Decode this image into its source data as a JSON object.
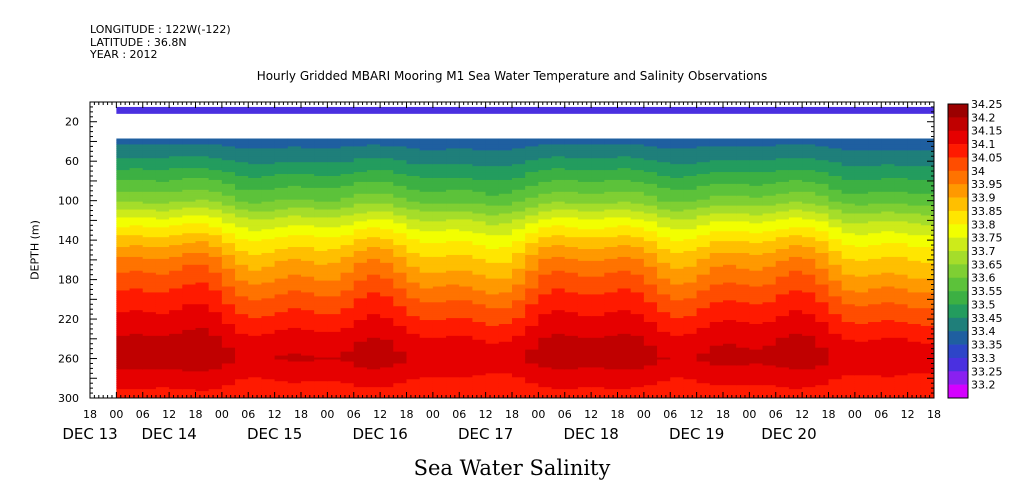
{
  "meta": {
    "longitude": "LONGITUDE : 122W(-122)",
    "latitude": "LATITUDE : 36.8N",
    "year": "YEAR : 2012"
  },
  "chart_data": {
    "type": "heatmap",
    "title": "Hourly Gridded MBARI Mooring M1 Sea Water Temperature and Salinity Observations",
    "subtitle": "Sea Water Salinity",
    "ylabel": "DEPTH (m)",
    "y_reversed": true,
    "ylim": [
      0,
      300
    ],
    "y_ticks": [
      20,
      60,
      100,
      140,
      180,
      220,
      260,
      300
    ],
    "x_range_hours": [
      -6,
      186
    ],
    "x_hour_ticks": [
      "18",
      "00",
      "06",
      "12",
      "18",
      "00",
      "06",
      "12",
      "18",
      "00",
      "06",
      "12",
      "18",
      "00",
      "06",
      "12",
      "18",
      "00",
      "06",
      "12",
      "18",
      "00",
      "06",
      "12",
      "18",
      "00",
      "06",
      "12",
      "18",
      "00",
      "06",
      "12",
      "18"
    ],
    "x_date_labels": [
      {
        "label": "DEC 13",
        "hour": -6
      },
      {
        "label": "DEC 14",
        "hour": 12
      },
      {
        "label": "DEC 15",
        "hour": 36
      },
      {
        "label": "DEC 16",
        "hour": 60
      },
      {
        "label": "DEC 17",
        "hour": 84
      },
      {
        "label": "DEC 18",
        "hour": 108
      },
      {
        "label": "DEC 19",
        "hour": 132
      },
      {
        "label": "DEC 20",
        "hour": 153
      }
    ],
    "data_start_hour": 0,
    "data_end_hour": 186,
    "surface_band": {
      "depth_from": 5,
      "depth_to": 12,
      "value": 33.33
    },
    "no_data_depths": [
      12,
      37
    ],
    "depth_profile": [
      {
        "depth": 37,
        "value": 33.42
      },
      {
        "depth": 60,
        "value": 33.5
      },
      {
        "depth": 80,
        "value": 33.58
      },
      {
        "depth": 100,
        "value": 33.66
      },
      {
        "depth": 120,
        "value": 33.78
      },
      {
        "depth": 140,
        "value": 33.88
      },
      {
        "depth": 160,
        "value": 33.96
      },
      {
        "depth": 180,
        "value": 34.02
      },
      {
        "depth": 200,
        "value": 34.08
      },
      {
        "depth": 220,
        "value": 34.13
      },
      {
        "depth": 240,
        "value": 34.18
      },
      {
        "depth": 260,
        "value": 34.21
      },
      {
        "depth": 280,
        "value": 34.16
      },
      {
        "depth": 300,
        "value": 34.12
      }
    ],
    "color_levels": [
      "34.25",
      "34.2",
      "34.15",
      "34.1",
      "34.05",
      "34",
      "33.95",
      "33.9",
      "33.85",
      "33.8",
      "33.75",
      "33.7",
      "33.65",
      "33.6",
      "33.55",
      "33.5",
      "33.45",
      "33.4",
      "33.35",
      "33.3",
      "33.25",
      "33.2"
    ],
    "color_scale": [
      "#9b0000",
      "#c00000",
      "#e60000",
      "#ff1a00",
      "#ff4d00",
      "#ff7300",
      "#ff9900",
      "#ffbf00",
      "#ffe600",
      "#f2ff00",
      "#cdeb1a",
      "#a5dd2a",
      "#7fcf33",
      "#5cc23a",
      "#3cb043",
      "#239c5e",
      "#1f7f7a",
      "#1f5fa0",
      "#2d45c8",
      "#4a30e0",
      "#8a20f0",
      "#d400ff"
    ]
  }
}
